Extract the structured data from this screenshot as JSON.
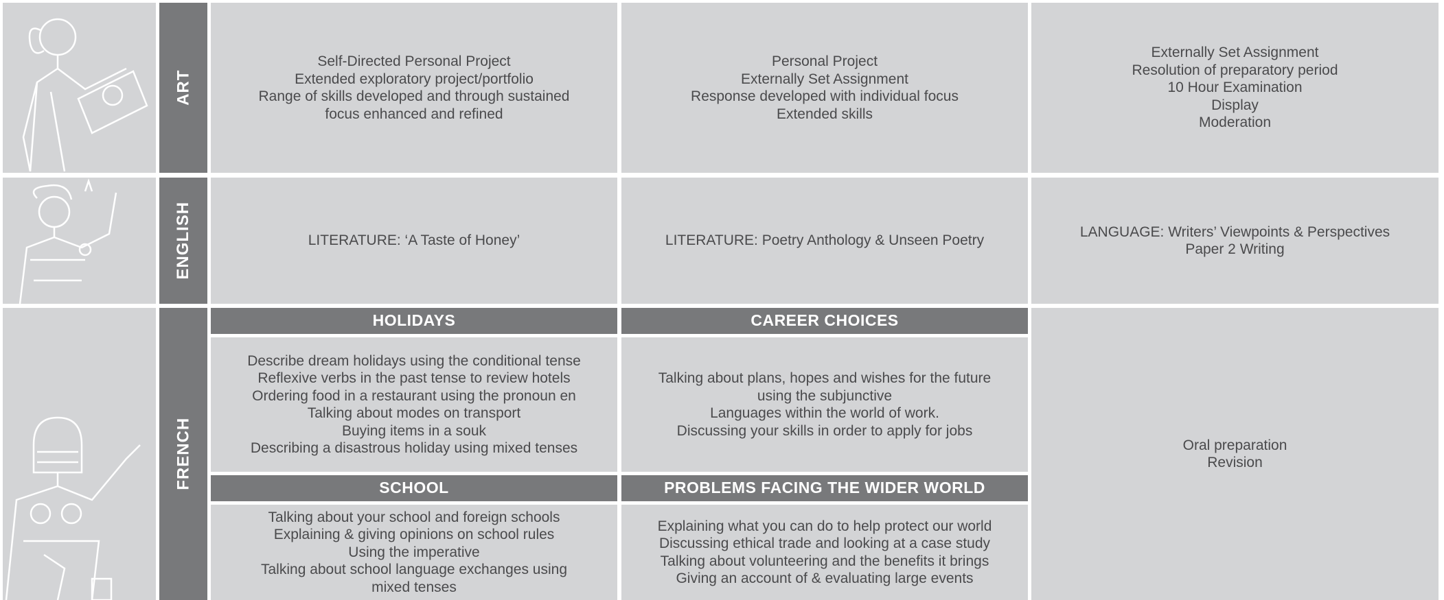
{
  "rows": [
    {
      "subject": "ART",
      "columns": [
        [
          "Self-Directed Personal Project",
          "Extended exploratory project/portfolio",
          "Range of skills developed and through sustained",
          "focus enhanced and refined"
        ],
        [
          "Personal Project",
          "Externally Set Assignment",
          "Response developed with individual focus",
          "Extended skills"
        ],
        [
          "Externally Set Assignment",
          "Resolution of preparatory period",
          "10 Hour Examination",
          "Display",
          "Moderation"
        ]
      ]
    },
    {
      "subject": "ENGLISH",
      "columns": [
        [
          "LITERATURE:  ‘A Taste of Honey’"
        ],
        [
          "LITERATURE: Poetry Anthology & Unseen Poetry"
        ],
        [
          "LANGUAGE: Writers’ Viewpoints & Perspectives",
          "Paper 2 Writing"
        ]
      ]
    },
    {
      "subject": "FRENCH",
      "topics": [
        {
          "heading": "HOLIDAYS",
          "lines": [
            "Describe dream holidays using the conditional tense",
            "Reflexive verbs in the past tense to review hotels",
            "Ordering food in a restaurant using the pronoun en",
            "Talking about modes on transport",
            "Buying items in a souk",
            "Describing a disastrous holiday using mixed tenses"
          ]
        },
        {
          "heading": "CAREER CHOICES",
          "lines": [
            "Talking about plans, hopes and wishes for the future",
            "using the subjunctive",
            "Languages within the world of work.",
            "Discussing your skills in order to apply for jobs"
          ]
        },
        {
          "heading": "SCHOOL",
          "lines": [
            "Talking about your school and foreign schools",
            "Explaining & giving opinions on school rules",
            "Using the imperative",
            "Talking about school language exchanges using",
            "mixed tenses"
          ]
        },
        {
          "heading": "PROBLEMS FACING THE WIDER WORLD",
          "lines": [
            "Explaining what you can do to help protect our world",
            "Discussing ethical trade and looking at a case study",
            "Talking about volunteering and the benefits it brings",
            "Giving an account of & evaluating large events"
          ]
        }
      ],
      "final": [
        "Oral preparation",
        "Revision"
      ]
    }
  ]
}
